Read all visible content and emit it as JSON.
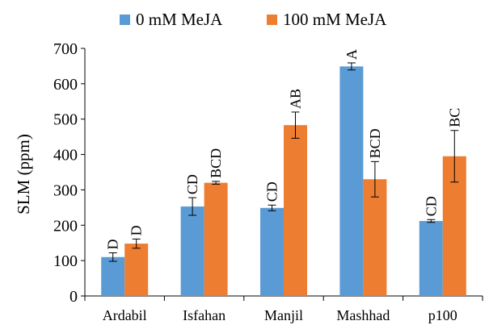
{
  "chart_data": {
    "type": "bar",
    "ylabel": "SLM (ppm)",
    "ylim": [
      0,
      700
    ],
    "yticks": [
      0,
      100,
      200,
      300,
      400,
      500,
      600,
      700
    ],
    "grid": false,
    "legend_position": "top",
    "categories": [
      "Ardabil",
      "Isfahan",
      "Manjil",
      "Mashhad",
      "p100"
    ],
    "series": [
      {
        "name": "0 mM MeJA",
        "color": "#5b9bd5",
        "values": [
          110,
          253,
          249,
          649,
          212
        ],
        "errors": [
          12,
          25,
          8,
          10,
          4
        ],
        "labels": [
          "D",
          "CD",
          "CD",
          "A",
          "CD"
        ]
      },
      {
        "name": "100 mM MeJA",
        "color": "#ed7d31",
        "values": [
          148,
          320,
          483,
          330,
          395
        ],
        "errors": [
          13,
          4,
          37,
          50,
          73
        ],
        "labels": [
          "D",
          "BCD",
          "AB",
          "BCD",
          "BC"
        ]
      }
    ]
  }
}
